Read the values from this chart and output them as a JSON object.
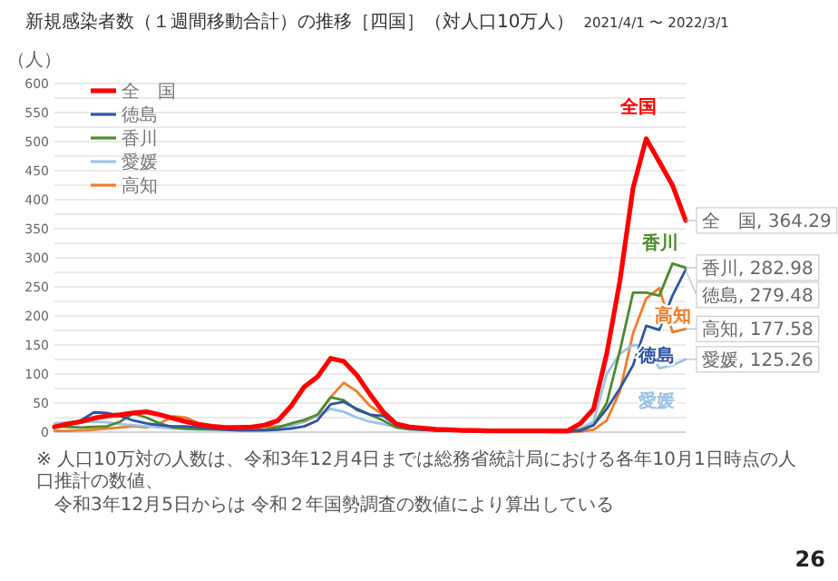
{
  "chart_data": {
    "type": "line",
    "title": "新規感染者数（１週間移動合計）の推移［四国］（対人口10万人）",
    "subtitle": "2021/4/1 〜 2022/3/1",
    "ylabel": "（人）",
    "categories": [
      null,
      null,
      null,
      null,
      null,
      null,
      null,
      null,
      null,
      null,
      null,
      null,
      null,
      null,
      null,
      null,
      null,
      null,
      null,
      null,
      null,
      null,
      null,
      null,
      null,
      null,
      null,
      null,
      null,
      null,
      null,
      null,
      null,
      null,
      null,
      null,
      null,
      null,
      null,
      null,
      null,
      null,
      null,
      null,
      null,
      null,
      null,
      null,
      null
    ],
    "series": [
      {
        "name": "全　国",
        "color": "#ff0000",
        "values": [
          9,
          14,
          18,
          24,
          28,
          30,
          33,
          35,
          30,
          24,
          18,
          13,
          10,
          8,
          8,
          9,
          12,
          20,
          45,
          78,
          95,
          127,
          122,
          98,
          65,
          35,
          14,
          9,
          7,
          5,
          4,
          3,
          3,
          2,
          2,
          2,
          2,
          2,
          2,
          2,
          15,
          40,
          135,
          260,
          420,
          505,
          465,
          425,
          364.29
        ],
        "value_labels": [
          null,
          null,
          null,
          null,
          null,
          null,
          null,
          null,
          null,
          null,
          null,
          null,
          null,
          null,
          null,
          null,
          null,
          null,
          null,
          null,
          null,
          null,
          null,
          null,
          null,
          null,
          null,
          null,
          null,
          null,
          null,
          null,
          null,
          null,
          null,
          null,
          null,
          null,
          null,
          null,
          null,
          null,
          null,
          null,
          null,
          null,
          null,
          null,
          "全　国, 364.29"
        ]
      },
      {
        "name": "徳島",
        "color": "#2f55a4",
        "values": [
          10,
          14,
          20,
          34,
          33,
          28,
          20,
          15,
          12,
          10,
          10,
          8,
          6,
          4,
          3,
          3,
          3,
          4,
          6,
          10,
          20,
          48,
          52,
          40,
          30,
          28,
          12,
          6,
          4,
          3,
          2,
          2,
          1,
          1,
          1,
          1,
          1,
          1,
          1,
          1,
          2,
          12,
          40,
          75,
          115,
          183,
          176,
          235,
          279.48
        ],
        "value_labels": [
          null,
          null,
          null,
          null,
          null,
          null,
          null,
          null,
          null,
          null,
          null,
          null,
          null,
          null,
          null,
          null,
          null,
          null,
          null,
          null,
          null,
          null,
          null,
          null,
          null,
          null,
          null,
          null,
          null,
          null,
          null,
          null,
          null,
          null,
          null,
          null,
          null,
          null,
          null,
          null,
          null,
          null,
          null,
          null,
          null,
          null,
          null,
          null,
          "徳島, 279.48"
        ]
      },
      {
        "name": "香川",
        "color": "#4e8a2e",
        "values": [
          10,
          9,
          8,
          9,
          10,
          18,
          32,
          25,
          15,
          8,
          6,
          5,
          5,
          4,
          4,
          4,
          5,
          8,
          15,
          21,
          30,
          60,
          55,
          38,
          30,
          20,
          8,
          5,
          4,
          3,
          3,
          2,
          2,
          1,
          1,
          1,
          1,
          1,
          1,
          1,
          4,
          12,
          50,
          140,
          240,
          240,
          235,
          290,
          282.98
        ],
        "value_labels": [
          null,
          null,
          null,
          null,
          null,
          null,
          null,
          null,
          null,
          null,
          null,
          null,
          null,
          null,
          null,
          null,
          null,
          null,
          null,
          null,
          null,
          null,
          null,
          null,
          null,
          null,
          null,
          null,
          null,
          null,
          null,
          null,
          null,
          null,
          null,
          null,
          null,
          null,
          null,
          null,
          null,
          null,
          null,
          null,
          null,
          null,
          null,
          null,
          "香川, 282.98"
        ]
      },
      {
        "name": "愛媛",
        "color": "#9dc3e6",
        "values": [
          15,
          17,
          18,
          18,
          17,
          14,
          12,
          10,
          8,
          6,
          5,
          5,
          4,
          4,
          3,
          3,
          4,
          6,
          10,
          20,
          28,
          40,
          35,
          25,
          18,
          14,
          8,
          5,
          4,
          3,
          2,
          2,
          1,
          1,
          1,
          1,
          1,
          1,
          1,
          1,
          6,
          18,
          100,
          135,
          150,
          148,
          110,
          115,
          125.26
        ],
        "value_labels": [
          null,
          null,
          null,
          null,
          null,
          null,
          null,
          null,
          null,
          null,
          null,
          null,
          null,
          null,
          null,
          null,
          null,
          null,
          null,
          null,
          null,
          null,
          null,
          null,
          null,
          null,
          null,
          null,
          null,
          null,
          null,
          null,
          null,
          null,
          null,
          null,
          null,
          null,
          null,
          null,
          null,
          null,
          null,
          null,
          null,
          null,
          null,
          null,
          "愛媛, 125.26"
        ]
      },
      {
        "name": "高知",
        "color": "#f07d2a",
        "values": [
          2,
          2,
          3,
          4,
          6,
          8,
          10,
          8,
          15,
          27,
          25,
          15,
          10,
          8,
          8,
          8,
          10,
          10,
          12,
          18,
          28,
          60,
          85,
          70,
          45,
          30,
          12,
          6,
          4,
          3,
          2,
          2,
          1,
          1,
          1,
          1,
          1,
          1,
          0,
          0,
          1,
          4,
          20,
          70,
          170,
          230,
          248,
          172,
          177.58
        ],
        "value_labels": [
          null,
          null,
          null,
          null,
          null,
          null,
          null,
          null,
          null,
          null,
          null,
          null,
          null,
          null,
          null,
          null,
          null,
          null,
          null,
          null,
          null,
          null,
          null,
          null,
          null,
          null,
          null,
          null,
          null,
          null,
          null,
          null,
          null,
          null,
          null,
          null,
          null,
          null,
          null,
          null,
          null,
          null,
          null,
          null,
          null,
          null,
          null,
          null,
          "高知, 177.58"
        ]
      }
    ],
    "ylim": [
      0,
      600
    ],
    "yticks": [
      0,
      {
        "value": 25,
        "label": null
      },
      50,
      {
        "value": 75,
        "label": null
      },
      100,
      {
        "value": 125,
        "label": null
      },
      150,
      {
        "value": 175,
        "label": null
      },
      200,
      {
        "value": 225,
        "label": null
      },
      250,
      {
        "value": 275,
        "label": null
      },
      300,
      {
        "value": 325,
        "label": null
      },
      350,
      {
        "value": 375,
        "label": null
      },
      400,
      {
        "value": 425,
        "label": null
      },
      450,
      {
        "value": 475,
        "label": null
      },
      500,
      {
        "value": 525,
        "label": null
      },
      550,
      {
        "value": 575,
        "label": null
      },
      600
    ],
    "grid": "y",
    "legend": "top left",
    "line_style": "solid",
    "marker": "none",
    "annotations": [
      "※ 人口10万対の人数は、令和3年12月4日までは総務省統計局における各年10月1日時点の人口推計の数値、",
      "令和3年12月5日からは 令和２年国勢調査の数値により算出している",
      "26",
      "全国",
      "徳島",
      "香川",
      "愛媛",
      "高知"
    ]
  }
}
